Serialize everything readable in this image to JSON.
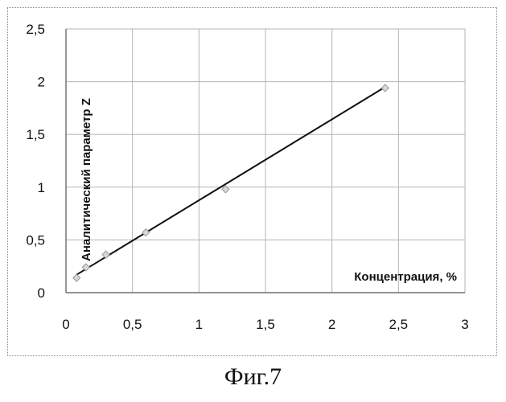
{
  "chart_data": {
    "type": "scatter",
    "title": "",
    "xlabel": "Концентрация, %",
    "ylabel": "Аналитический параметр Z",
    "xlim": [
      0,
      3
    ],
    "ylim": [
      0,
      2.5
    ],
    "x_ticks": [
      0,
      0.5,
      1,
      1.5,
      2,
      2.5,
      3
    ],
    "y_ticks": [
      0,
      0.5,
      1,
      1.5,
      2,
      2.5
    ],
    "x_tick_labels": [
      "0",
      "0,5",
      "1",
      "1,5",
      "2",
      "2,5",
      "3"
    ],
    "y_tick_labels": [
      "0",
      "0,5",
      "1",
      "1,5",
      "2",
      "2,5"
    ],
    "grid": true,
    "legend": "none",
    "series": [
      {
        "x": [
          0.08,
          0.15,
          0.3,
          0.6,
          1.2,
          2.4
        ],
        "y": [
          0.14,
          0.24,
          0.36,
          0.57,
          0.98,
          1.94
        ],
        "marker": "diamond",
        "color": "#9a9a9a"
      }
    ],
    "trendline": {
      "x": [
        0.08,
        2.4
      ],
      "y": [
        0.17,
        1.95
      ],
      "color": "#111111"
    }
  },
  "caption": "Фиг.7"
}
